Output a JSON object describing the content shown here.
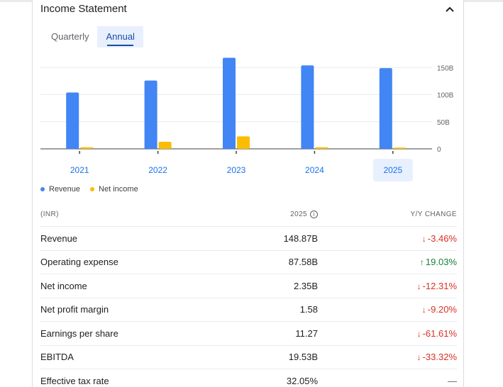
{
  "header": {
    "title": "Income Statement",
    "collapse_icon": "chevron-up-icon"
  },
  "tabs": [
    {
      "label": "Quarterly",
      "active": false
    },
    {
      "label": "Annual",
      "active": true
    }
  ],
  "colors": {
    "revenue": "#4285f4",
    "net_income": "#fbbc04",
    "negative": "#d93025",
    "positive": "#188038",
    "selected_bg": "#e8f0fe",
    "link": "#1a73e8"
  },
  "chart_data": {
    "type": "bar",
    "categories": [
      "2021",
      "2022",
      "2023",
      "2024",
      "2025"
    ],
    "selected_category": "2025",
    "series": [
      {
        "name": "Revenue",
        "values": [
          104,
          126,
          168,
          154,
          148.87
        ]
      },
      {
        "name": "Net income",
        "values": [
          3,
          13,
          23,
          3,
          2.35
        ]
      }
    ],
    "y_ticks": [
      "0",
      "50B",
      "100B",
      "150B"
    ],
    "y_tick_values": [
      0,
      50,
      100,
      150
    ],
    "ylim": [
      0,
      170
    ],
    "grid": true,
    "legend_position": "bottom-left"
  },
  "table": {
    "headers": {
      "label": "(INR)",
      "year": "2025",
      "change": "Y/Y CHANGE"
    },
    "info_icon": "info-icon",
    "rows": [
      {
        "label": "Revenue",
        "value": "148.87B",
        "change": "-3.46%",
        "direction": "down"
      },
      {
        "label": "Operating expense",
        "value": "87.58B",
        "change": "19.03%",
        "direction": "up"
      },
      {
        "label": "Net income",
        "value": "2.35B",
        "change": "-12.31%",
        "direction": "down"
      },
      {
        "label": "Net profit margin",
        "value": "1.58",
        "change": "-9.20%",
        "direction": "down"
      },
      {
        "label": "Earnings per share",
        "value": "11.27",
        "change": "-61.61%",
        "direction": "down"
      },
      {
        "label": "EBITDA",
        "value": "19.53B",
        "change": "-33.32%",
        "direction": "down"
      },
      {
        "label": "Effective tax rate",
        "value": "32.05%",
        "change": "—",
        "direction": "none"
      }
    ]
  }
}
